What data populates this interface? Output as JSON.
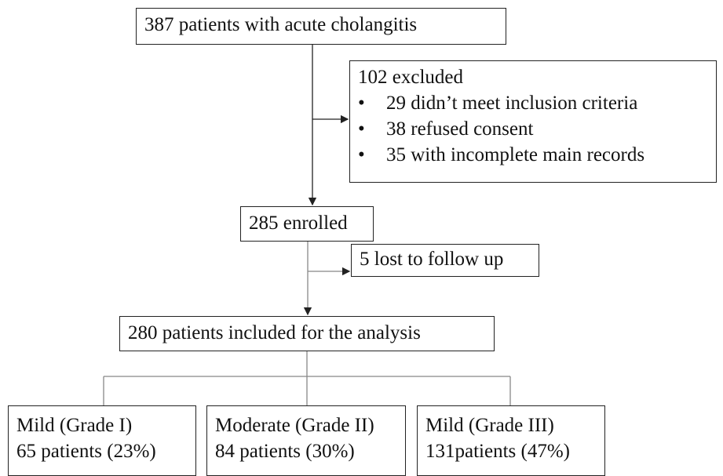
{
  "nodes": [
    {
      "label": "387 patients with acute cholangitis"
    },
    {
      "title": "102 excluded",
      "items": [
        "29 didn’t meet inclusion criteria",
        "38 refused consent",
        "35 with incomplete main records"
      ]
    },
    {
      "label": "285 enrolled"
    },
    {
      "label": "5 lost to follow up"
    },
    {
      "label": "280 patients included for the analysis"
    }
  ],
  "groups": [
    {
      "name": "Mild (Grade I)",
      "count": "65 patients (23%)"
    },
    {
      "name": "Moderate (Grade II)",
      "count": "84 patients (30%)"
    },
    {
      "name": "Mild (Grade III)",
      "count": "131patients (47%)"
    }
  ]
}
